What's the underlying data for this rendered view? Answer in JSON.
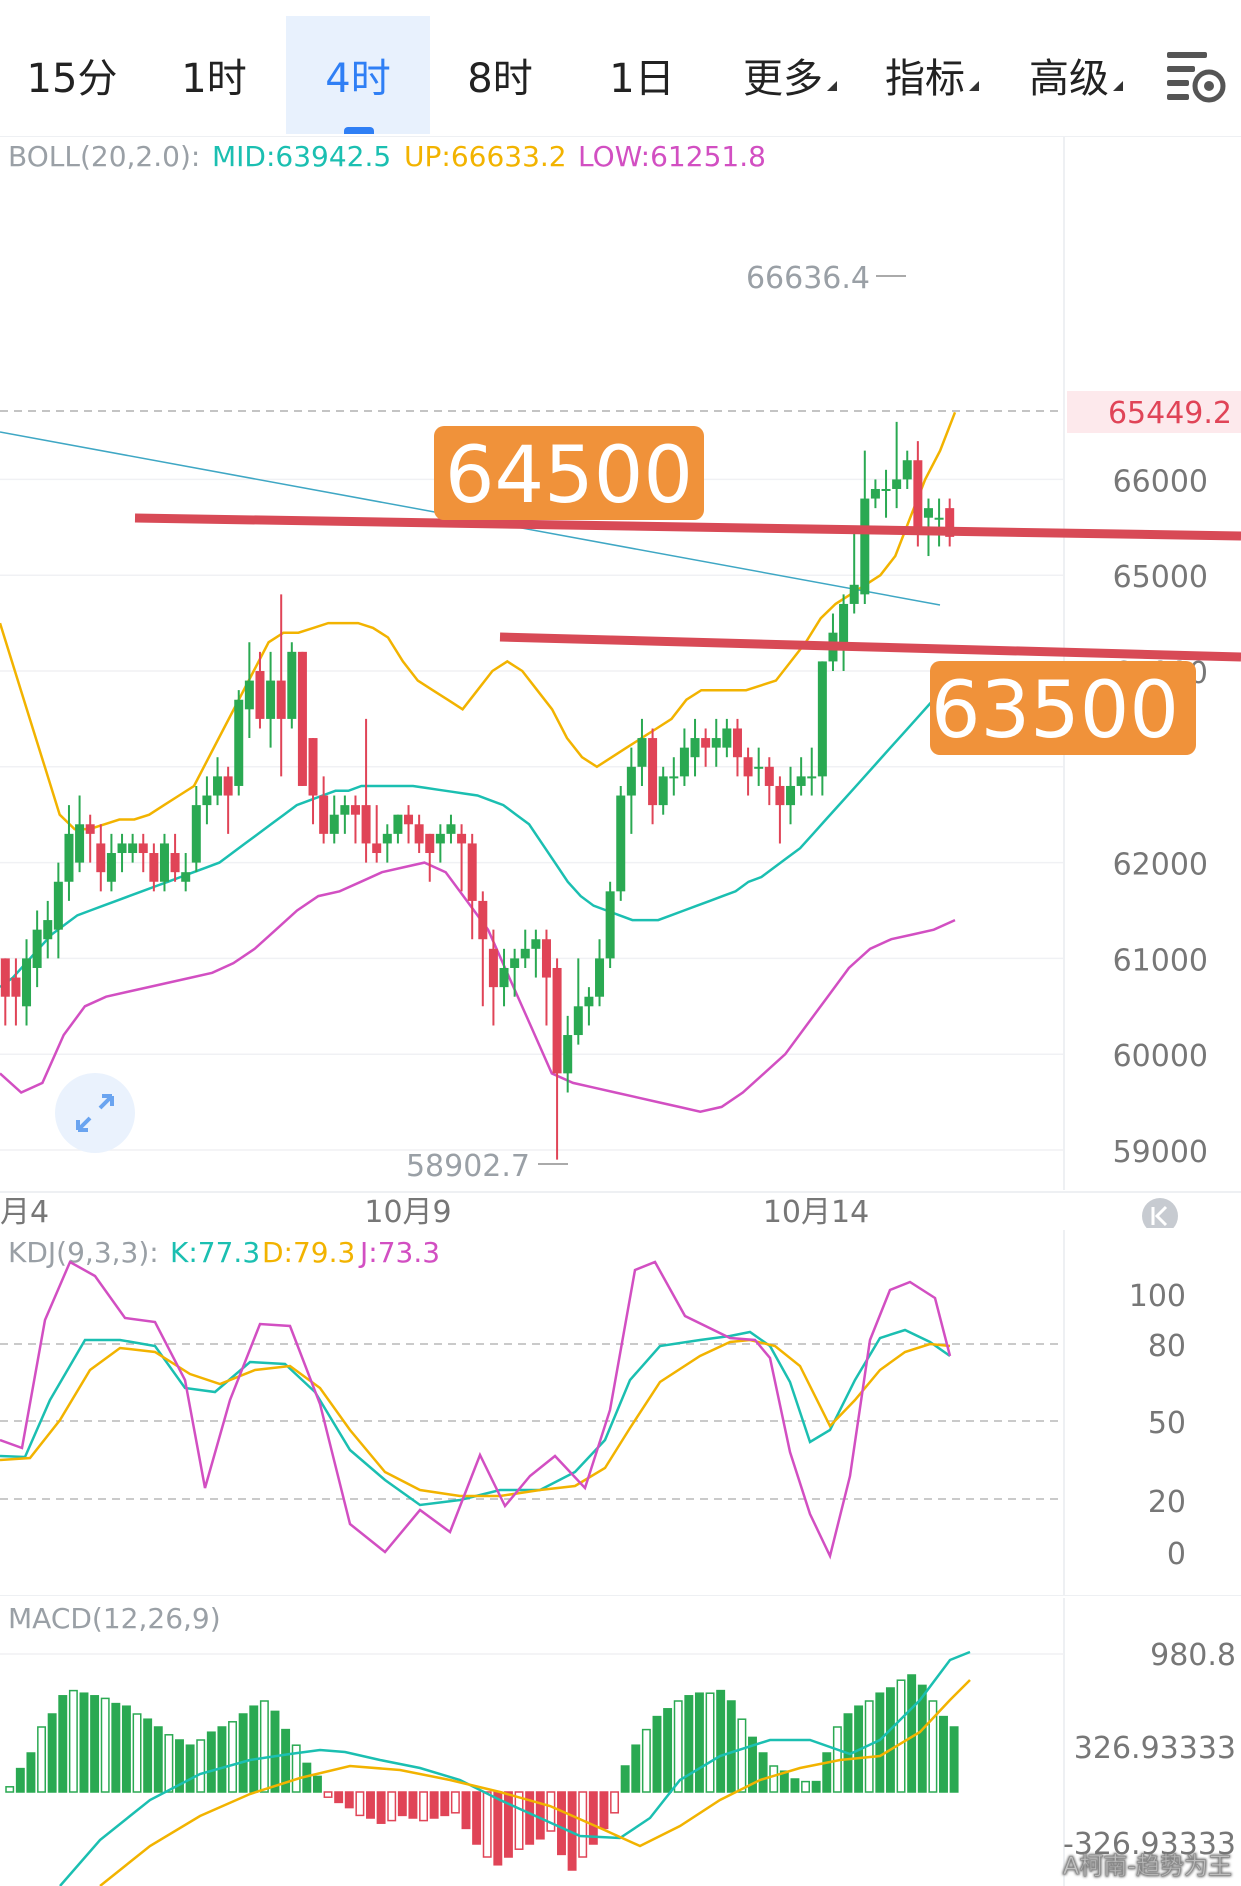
{
  "tabs": [
    "15分",
    "1时",
    "4时",
    "8时",
    "1日",
    "更多",
    "指标",
    "高级"
  ],
  "active_tab": "4时",
  "boll": {
    "label": "BOLL(20,2.0):",
    "mid": "MID:63942.5",
    "up": "UP:66633.2",
    "low": "LOW:61251.8",
    "color_mid": "#1bbfb1",
    "color_up": "#f2b300",
    "color_low": "#d24fc2"
  },
  "kdj": {
    "label": "KDJ(9,3,3):",
    "k": "K:77.3",
    "d": "D:79.3",
    "j": "J:73.3"
  },
  "macd": {
    "label": "MACD(12,26,9)"
  },
  "price_axis": [
    "66000",
    "65000",
    "64000",
    "62000",
    "61000",
    "60000",
    "59000"
  ],
  "current_price": "65449.2",
  "high_mark": "66636.4",
  "low_mark": "58902.7",
  "date_labels": [
    "月4",
    "10月9",
    "10月14"
  ],
  "kdj_axis": [
    "100",
    "80",
    "50",
    "20",
    "0"
  ],
  "macd_axis": [
    "980.8",
    "326.93333",
    "-326.93333"
  ],
  "annotations": [
    "64500",
    "63500"
  ],
  "watermark": "A柯南-趋势为王",
  "colors": {
    "up": "#2aa952",
    "down": "#e04457",
    "accent": "#2f7ff5",
    "label_bg": "#f0923a",
    "line_red": "#d84a56"
  },
  "chart_data": {
    "type": "candlestick",
    "candles": [
      [
        61000,
        60600,
        61000,
        60300
      ],
      [
        60800,
        60600,
        61000,
        60300
      ],
      [
        60500,
        61000,
        61200,
        60300
      ],
      [
        60900,
        61300,
        61500,
        60700
      ],
      [
        61200,
        61400,
        61600,
        61000
      ],
      [
        61300,
        61800,
        62000,
        61000
      ],
      [
        61800,
        62300,
        62600,
        61600
      ],
      [
        62000,
        62400,
        62700,
        61900
      ],
      [
        62400,
        62300,
        62500,
        62000
      ],
      [
        62200,
        61900,
        62400,
        61700
      ],
      [
        61800,
        62100,
        62300,
        61700
      ],
      [
        62100,
        62200,
        62300,
        61900
      ],
      [
        62100,
        62200,
        62300,
        62000
      ],
      [
        62200,
        62100,
        62300,
        61900
      ],
      [
        62100,
        61800,
        62200,
        61700
      ],
      [
        61800,
        62200,
        62300,
        61700
      ],
      [
        62100,
        61900,
        62300,
        61800
      ],
      [
        61800,
        61900,
        62100,
        61700
      ],
      [
        62000,
        62600,
        62800,
        61900
      ],
      [
        62600,
        62700,
        62900,
        62400
      ],
      [
        62700,
        62900,
        63100,
        62600
      ],
      [
        62900,
        62700,
        63000,
        62300
      ],
      [
        62800,
        63700,
        63800,
        62700
      ],
      [
        63600,
        63900,
        64300,
        63300
      ],
      [
        64000,
        63500,
        64200,
        63400
      ],
      [
        63500,
        63900,
        64200,
        63200
      ],
      [
        63900,
        63500,
        64800,
        62900
      ],
      [
        63500,
        64200,
        64300,
        63400
      ],
      [
        64200,
        62800,
        64200,
        62800
      ],
      [
        63300,
        62700,
        63300,
        62400
      ],
      [
        62700,
        62300,
        62900,
        62200
      ],
      [
        62300,
        62500,
        62700,
        62200
      ],
      [
        62500,
        62600,
        62700,
        62300
      ],
      [
        62600,
        62500,
        62700,
        62200
      ],
      [
        62600,
        62200,
        63500,
        62000
      ],
      [
        62200,
        62100,
        62600,
        62000
      ],
      [
        62200,
        62300,
        62400,
        62000
      ],
      [
        62300,
        62500,
        62500,
        62200
      ],
      [
        62500,
        62400,
        62600,
        62200
      ],
      [
        62400,
        62200,
        62500,
        62100
      ],
      [
        62300,
        62100,
        62300,
        61800
      ],
      [
        62200,
        62300,
        62400,
        62000
      ],
      [
        62300,
        62400,
        62500,
        62200
      ],
      [
        62300,
        62200,
        62400,
        61700
      ],
      [
        62200,
        61600,
        62300,
        61200
      ],
      [
        61600,
        61200,
        61700,
        60500
      ],
      [
        61100,
        60700,
        61300,
        60300
      ],
      [
        60700,
        60900,
        61100,
        60500
      ],
      [
        60900,
        61000,
        61100,
        60600
      ],
      [
        61000,
        61100,
        61300,
        60900
      ],
      [
        61100,
        61200,
        61300,
        60800
      ],
      [
        61200,
        60800,
        61300,
        60300
      ],
      [
        60900,
        59800,
        61000,
        58900
      ],
      [
        59800,
        60200,
        60400,
        59600
      ],
      [
        60200,
        60500,
        61000,
        60100
      ],
      [
        60500,
        60600,
        60700,
        60300
      ],
      [
        60600,
        61000,
        61200,
        60500
      ],
      [
        61000,
        61700,
        61800,
        60900
      ],
      [
        61700,
        62700,
        62800,
        61600
      ],
      [
        62700,
        63000,
        63200,
        62300
      ],
      [
        63000,
        63300,
        63500,
        62800
      ],
      [
        63300,
        62600,
        63400,
        62400
      ],
      [
        62600,
        62900,
        63000,
        62500
      ],
      [
        62900,
        62900,
        63100,
        62700
      ],
      [
        62900,
        63200,
        63400,
        62800
      ],
      [
        63100,
        63300,
        63500,
        62900
      ],
      [
        63300,
        63200,
        63400,
        63000
      ],
      [
        63200,
        63300,
        63500,
        63000
      ],
      [
        63200,
        63400,
        63500,
        63100
      ],
      [
        63400,
        63100,
        63500,
        62900
      ],
      [
        63100,
        62900,
        63200,
        62700
      ],
      [
        63000,
        63000,
        63200,
        62800
      ],
      [
        63000,
        62800,
        63100,
        62600
      ],
      [
        62800,
        62600,
        62900,
        62200
      ],
      [
        62600,
        62800,
        63000,
        62400
      ],
      [
        62800,
        62900,
        63100,
        62700
      ],
      [
        62900,
        62900,
        63200,
        62700
      ],
      [
        62900,
        64100,
        64100,
        62700
      ],
      [
        64100,
        64400,
        64600,
        64000
      ],
      [
        64300,
        64700,
        64800,
        64000
      ],
      [
        64700,
        64900,
        65500,
        64600
      ],
      [
        64800,
        65800,
        66300,
        64700
      ],
      [
        65800,
        65900,
        66000,
        65700
      ],
      [
        65900,
        65900,
        66100,
        65600
      ],
      [
        65900,
        66000,
        66600,
        65700
      ],
      [
        66000,
        66200,
        66300,
        65900
      ],
      [
        66200,
        65500,
        66400,
        65300
      ],
      [
        65600,
        65700,
        65800,
        65200
      ],
      [
        65600,
        65600,
        65800,
        65300
      ],
      [
        65700,
        65400,
        65800,
        65300
      ]
    ],
    "boll_mid": [
      60700,
      60800,
      60950,
      61100,
      61250,
      61350,
      61450,
      61500,
      61550,
      61600,
      61650,
      61700,
      61750,
      61800,
      61850,
      61900,
      61950,
      62000,
      62100,
      62200,
      62300,
      62400,
      62500,
      62600,
      62650,
      62700,
      62750,
      62750,
      62800,
      62800,
      62800,
      62800,
      62800,
      62780,
      62760,
      62740,
      62720,
      62700,
      62650,
      62600,
      62500,
      62400,
      62200,
      62000,
      61800,
      61650,
      61550,
      61500,
      61450,
      61400,
      61400,
      61400,
      61450,
      61500,
      61550,
      61600,
      61650,
      61700,
      61800,
      61850,
      61950,
      62050,
      62150,
      62300,
      62450,
      62600,
      62750,
      62900,
      63050,
      63200,
      63350,
      63500,
      63650,
      63800,
      63900
    ],
    "boll_up": [
      64500,
      64000,
      63500,
      63000,
      62500,
      62350,
      62350,
      62400,
      62450,
      62450,
      62500,
      62600,
      62700,
      62800,
      63100,
      63400,
      63700,
      64000,
      64300,
      64400,
      64400,
      64450,
      64500,
      64500,
      64500,
      64450,
      64350,
      64100,
      63900,
      63800,
      63700,
      63600,
      63800,
      64000,
      64100,
      64000,
      63800,
      63600,
      63300,
      63100,
      63000,
      63100,
      63200,
      63300,
      63400,
      63500,
      63700,
      63800,
      63800,
      63800,
      63800,
      63850,
      63900,
      64100,
      64300,
      64550,
      64700,
      64800,
      64900,
      65000,
      65200,
      65600,
      66000,
      66300,
      66700
    ],
    "boll_low": [
      59800,
      59600,
      59700,
      60200,
      60500,
      60600,
      60650,
      60700,
      60750,
      60800,
      60850,
      60950,
      61100,
      61300,
      61500,
      61650,
      61700,
      61800,
      61900,
      61950,
      62000,
      61900,
      61600,
      61300,
      60800,
      60300,
      59800,
      59700,
      59650,
      59600,
      59550,
      59500,
      59450,
      59400,
      59450,
      59600,
      59800,
      60000,
      60300,
      60600,
      60900,
      61100,
      61200,
      61250,
      61300,
      61400
    ]
  }
}
